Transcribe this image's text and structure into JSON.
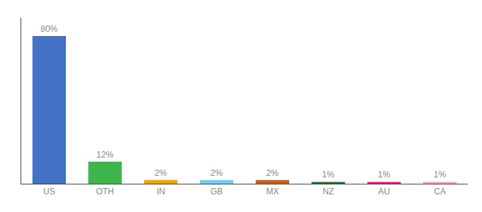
{
  "chart_data": {
    "type": "bar",
    "categories": [
      "US",
      "OTH",
      "IN",
      "GB",
      "MX",
      "NZ",
      "AU",
      "CA"
    ],
    "values": [
      80,
      12,
      2,
      2,
      2,
      1,
      1,
      1
    ],
    "value_labels": [
      "80%",
      "12%",
      "2%",
      "2%",
      "2%",
      "1%",
      "1%",
      "1%"
    ],
    "colors": [
      "#4472c4",
      "#3db54a",
      "#f0a500",
      "#6ecff6",
      "#c8601a",
      "#1a6e2e",
      "#e8187a",
      "#f4a0b5"
    ],
    "ylim": [
      0,
      90
    ],
    "data_labels": true,
    "tick_labels": "x",
    "grid": false
  }
}
